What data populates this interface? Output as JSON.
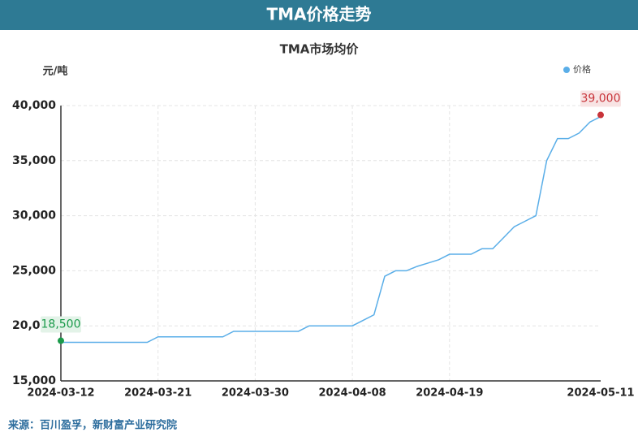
{
  "header": "TMA价格走势",
  "source": "来源：百川盈孚，新财富产业研究院",
  "chart_data": {
    "type": "line",
    "title": "TMA市场均价",
    "y_label": "元/吨",
    "categories": [
      "2024-03-12",
      null,
      null,
      null,
      null,
      null,
      null,
      null,
      null,
      "2024-03-21",
      null,
      null,
      null,
      null,
      null,
      null,
      null,
      null,
      "2024-03-30",
      null,
      null,
      null,
      null,
      null,
      null,
      null,
      null,
      "2024-04-08",
      null,
      null,
      null,
      null,
      null,
      null,
      null,
      null,
      "2024-04-19",
      null,
      null,
      null,
      null,
      null,
      null,
      null,
      null,
      null,
      null,
      null,
      null,
      null,
      "2024-05-11"
    ],
    "series": [
      {
        "name": "价格",
        "color": "#5aaee8",
        "values": [
          18500,
          18500,
          18500,
          18500,
          18500,
          18500,
          18500,
          18500,
          18500,
          19000,
          19000,
          19000,
          19000,
          19000,
          19000,
          19000,
          19500,
          19500,
          19500,
          19500,
          19500,
          19500,
          19500,
          20000,
          20000,
          20000,
          20000,
          20000,
          20500,
          21000,
          24500,
          25000,
          25000,
          25400,
          25700,
          26000,
          26500,
          26500,
          26500,
          27000,
          27000,
          28000,
          29000,
          29500,
          30000,
          35000,
          37000,
          37000,
          37500,
          38500,
          39000
        ],
        "value_labels": [
          "18,500",
          null,
          null,
          null,
          null,
          null,
          null,
          null,
          null,
          null,
          null,
          null,
          null,
          null,
          null,
          null,
          null,
          null,
          null,
          null,
          null,
          null,
          null,
          null,
          null,
          null,
          null,
          null,
          null,
          null,
          null,
          null,
          null,
          null,
          null,
          null,
          null,
          null,
          null,
          null,
          null,
          null,
          null,
          null,
          null,
          null,
          null,
          null,
          null,
          null,
          "39,000"
        ]
      }
    ],
    "ylim": [
      15000,
      40000
    ],
    "yticks": [
      {
        "value": 15000,
        "label": "15,000"
      },
      {
        "value": 20000,
        "label": "20,000"
      },
      {
        "value": 25000,
        "label": "25,000"
      },
      {
        "value": 30000,
        "label": "30,000"
      },
      {
        "value": 35000,
        "label": "35,000"
      },
      {
        "value": 40000,
        "label": "40,000"
      }
    ],
    "grid": true,
    "legend": "top-right"
  }
}
